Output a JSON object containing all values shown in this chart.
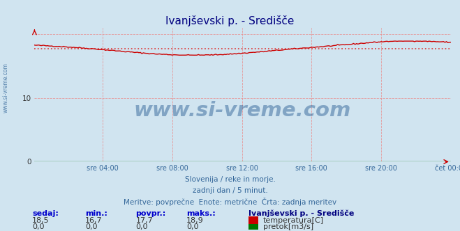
{
  "title": "Ivanjševski p. - Središče",
  "background_color": "#d0e4f0",
  "plot_bg_color": "#d0e4f0",
  "grid_color": "#e89090",
  "xlim": [
    0,
    287
  ],
  "ylim": [
    0,
    21
  ],
  "ytick_vals": [
    0,
    10,
    20
  ],
  "xtick_labels": [
    "sre 04:00",
    "sre 08:00",
    "sre 12:00",
    "sre 16:00",
    "sre 20:00",
    "čet 00:00"
  ],
  "xtick_positions": [
    47,
    95,
    143,
    191,
    239,
    287
  ],
  "temp_min": 16.7,
  "temp_max": 18.9,
  "temp_avg": 17.7,
  "temp_sedaj": 18.5,
  "pretok_sedaj": 0.0,
  "pretok_min": 0.0,
  "pretok_avg": 0.0,
  "pretok_max": 0.0,
  "temp_color": "#cc0000",
  "pretok_color": "#007700",
  "avg_line_color": "#dd4444",
  "subtitle1": "Slovenija / reke in morje.",
  "subtitle2": "zadnji dan / 5 minut.",
  "subtitle3": "Meritve: povprečne  Enote: metrične  Črta: zadnja meritev",
  "label_sedaj": "sedaj:",
  "label_min": "min.:",
  "label_povpr": "povpr.:",
  "label_maks": "maks.:",
  "legend_title": "Ivanjševski p. - Središče",
  "legend_temp": "temperatura[C]",
  "legend_pretok": "pretok[m3/s]",
  "watermark": "www.si-vreme.com",
  "watermark_color": "#336699",
  "left_label": "www.si-vreme.com",
  "left_label_color": "#336699",
  "title_color": "#000080",
  "tick_color": "#336699",
  "subtitle_color": "#336699",
  "header_color": "#0000cc",
  "legend_title_color": "#000080"
}
